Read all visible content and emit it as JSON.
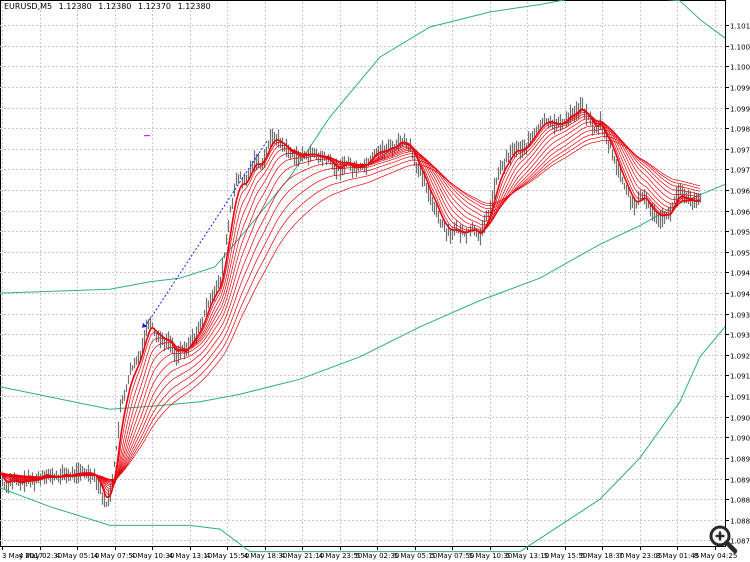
{
  "header": {
    "symbol_tf": "EURUSD,M5",
    "quote_open": "1.12380",
    "quote_high": "1.12380",
    "quote_low": "1.12370",
    "quote_close": "1.12380"
  },
  "colors": {
    "price_bars": "#707070",
    "ma_ribbon": "#e8000b",
    "envelope": "#2eaf7d",
    "grid": "#c8c8c8",
    "trend_line": "#1a1aff",
    "marker": "#c000c0"
  },
  "zoom_icon": "magnifier-plus-icon",
  "chart_data": {
    "type": "line",
    "title": "",
    "y_labels": [
      "1.10125",
      "1.10070",
      "1.10015",
      "1.09960",
      "1.09905",
      "1.09850",
      "1.09795",
      "1.09740",
      "1.09685",
      "1.09630",
      "1.09575",
      "1.09520",
      "1.09465",
      "1.09410",
      "1.09355",
      "1.09300",
      "1.09245",
      "1.09190",
      "1.09135",
      "1.09080",
      "1.09025",
      "1.08970",
      "1.08915",
      "1.08860",
      "1.08805",
      "1.08750"
    ],
    "x_labels": [
      "3 May 2017",
      "4 May 02:30",
      "4 May 05:10",
      "4 May 07:50",
      "4 May 10:30",
      "4 May 13:10",
      "4 May 15:50",
      "4 May 18:30",
      "4 May 21:10",
      "4 May 23:50",
      "5 May 02:30",
      "5 May 05:10",
      "5 May 07:50",
      "5 May 10:30",
      "5 May 13:10",
      "5 May 15:50",
      "5 May 18:30",
      "7 May 23:05",
      "8 May 01:45",
      "8 May 04:25"
    ],
    "ylim": [
      1.08735,
      1.1016
    ],
    "grid": true,
    "price_path_x": [
      0,
      5,
      10,
      15,
      20,
      25,
      30,
      35,
      40,
      45,
      50,
      55,
      60,
      65,
      70,
      75,
      80,
      85,
      90,
      95,
      100,
      105,
      110,
      115,
      120,
      125,
      130,
      135,
      140,
      145,
      150,
      155,
      160,
      165,
      170,
      175,
      180,
      185,
      190,
      195,
      200,
      205,
      210,
      215,
      220,
      225,
      230,
      235,
      240,
      245,
      250,
      255,
      260,
      265,
      270,
      275,
      280,
      285,
      290,
      295,
      300,
      305,
      310,
      315,
      320,
      325,
      330,
      335,
      340,
      345,
      350,
      355,
      360,
      365,
      370,
      375,
      380,
      385,
      390,
      395,
      400,
      405,
      410,
      415,
      420,
      425,
      430,
      435,
      440,
      445,
      450,
      455,
      460,
      465,
      470,
      475,
      480,
      485,
      490,
      495,
      500,
      505,
      510,
      515,
      520,
      525,
      530,
      535,
      540,
      545,
      550,
      555,
      560,
      565,
      570,
      575,
      580,
      585,
      590,
      595,
      600,
      605,
      610,
      615,
      620,
      625,
      630,
      635,
      640,
      645,
      650,
      655,
      660,
      665,
      670,
      675,
      680,
      685,
      690,
      695,
      700,
      705,
      710,
      715,
      720,
      725
    ],
    "price_path_y": [
      1.0893,
      1.0889,
      1.0891,
      1.0891,
      1.089,
      1.0891,
      1.0891,
      1.0891,
      1.0892,
      1.0893,
      1.0892,
      1.0892,
      1.0892,
      1.0893,
      1.0892,
      1.0893,
      1.0893,
      1.0893,
      1.0893,
      1.0892,
      1.0889,
      1.0884,
      1.0888,
      1.0897,
      1.091,
      1.0915,
      1.092,
      1.0922,
      1.0925,
      1.0931,
      1.0934,
      1.093,
      1.0929,
      1.0928,
      1.0928,
      1.0924,
      1.0926,
      1.0925,
      1.0928,
      1.093,
      1.0932,
      1.0936,
      1.094,
      1.0942,
      1.0944,
      1.0953,
      1.0963,
      1.097,
      1.0972,
      1.097,
      1.0974,
      1.0977,
      1.0975,
      1.0978,
      1.0982,
      1.0983,
      1.0981,
      1.098,
      1.0978,
      1.0978,
      1.0977,
      1.0978,
      1.0978,
      1.0978,
      1.0977,
      1.0977,
      1.0976,
      1.0974,
      1.0974,
      1.0976,
      1.0975,
      1.0974,
      1.0975,
      1.0975,
      1.0977,
      1.0979,
      1.0979,
      1.0979,
      1.098,
      1.098,
      1.0982,
      1.0981,
      1.098,
      1.0976,
      1.0973,
      1.097,
      1.0966,
      1.0964,
      1.096,
      1.0958,
      1.0957,
      1.0958,
      1.0957,
      1.0957,
      1.0958,
      1.0958,
      1.0956,
      1.096,
      1.0964,
      1.097,
      1.0974,
      1.0976,
      1.0978,
      1.098,
      1.0979,
      1.098,
      1.0982,
      1.0984,
      1.0986,
      1.0987,
      1.0987,
      1.0986,
      1.0986,
      1.0987,
      1.0989,
      1.0989,
      1.0991,
      1.0989,
      1.0987,
      1.0984,
      1.0987,
      1.0982,
      1.098,
      1.0976,
      1.0972,
      1.0969,
      1.0966,
      1.0964,
      1.0966,
      1.0967,
      1.0963,
      1.0962,
      1.0961,
      1.0962,
      1.0962,
      1.0967,
      1.0968,
      1.0966,
      1.0966,
      1.0965,
      1.0966
    ],
    "envelope_upper": [
      [
        0,
        1.0941
      ],
      [
        110,
        1.0942
      ],
      [
        150,
        1.0944
      ],
      [
        180,
        1.0945
      ],
      [
        215,
        1.0948
      ],
      [
        250,
        1.0959
      ],
      [
        290,
        1.0972
      ],
      [
        330,
        1.0988
      ],
      [
        380,
        1.1004
      ],
      [
        430,
        1.1012
      ],
      [
        490,
        1.1016
      ],
      [
        540,
        1.1018
      ],
      [
        580,
        1.102
      ],
      [
        640,
        1.102
      ],
      [
        680,
        1.1019
      ],
      [
        700,
        1.1014
      ],
      [
        725,
        1.1009
      ]
    ],
    "envelope_middle": [
      [
        0,
        1.0916
      ],
      [
        110,
        1.091
      ],
      [
        160,
        1.0911
      ],
      [
        200,
        1.0912
      ],
      [
        240,
        1.0914
      ],
      [
        300,
        1.0918
      ],
      [
        360,
        1.0924
      ],
      [
        420,
        1.0932
      ],
      [
        480,
        1.0939
      ],
      [
        540,
        1.0945
      ],
      [
        600,
        1.0954
      ],
      [
        640,
        1.0959
      ],
      [
        680,
        1.0965
      ],
      [
        725,
        1.097
      ]
    ],
    "envelope_lower": [
      [
        0,
        1.0889
      ],
      [
        50,
        1.0884
      ],
      [
        110,
        1.0879
      ],
      [
        150,
        1.0879
      ],
      [
        190,
        1.0879
      ],
      [
        220,
        1.0878
      ],
      [
        240,
        1.0874
      ],
      [
        250,
        1.0872
      ],
      [
        520,
        1.0872
      ],
      [
        560,
        1.0879
      ],
      [
        600,
        1.0886
      ],
      [
        640,
        1.0897
      ],
      [
        680,
        1.0912
      ],
      [
        700,
        1.0924
      ],
      [
        725,
        1.0932
      ]
    ],
    "trend_line": [
      [
        145,
        1.0932
      ],
      [
        268,
        1.0982
      ]
    ],
    "marker": [
      147,
      1.0983
    ]
  }
}
